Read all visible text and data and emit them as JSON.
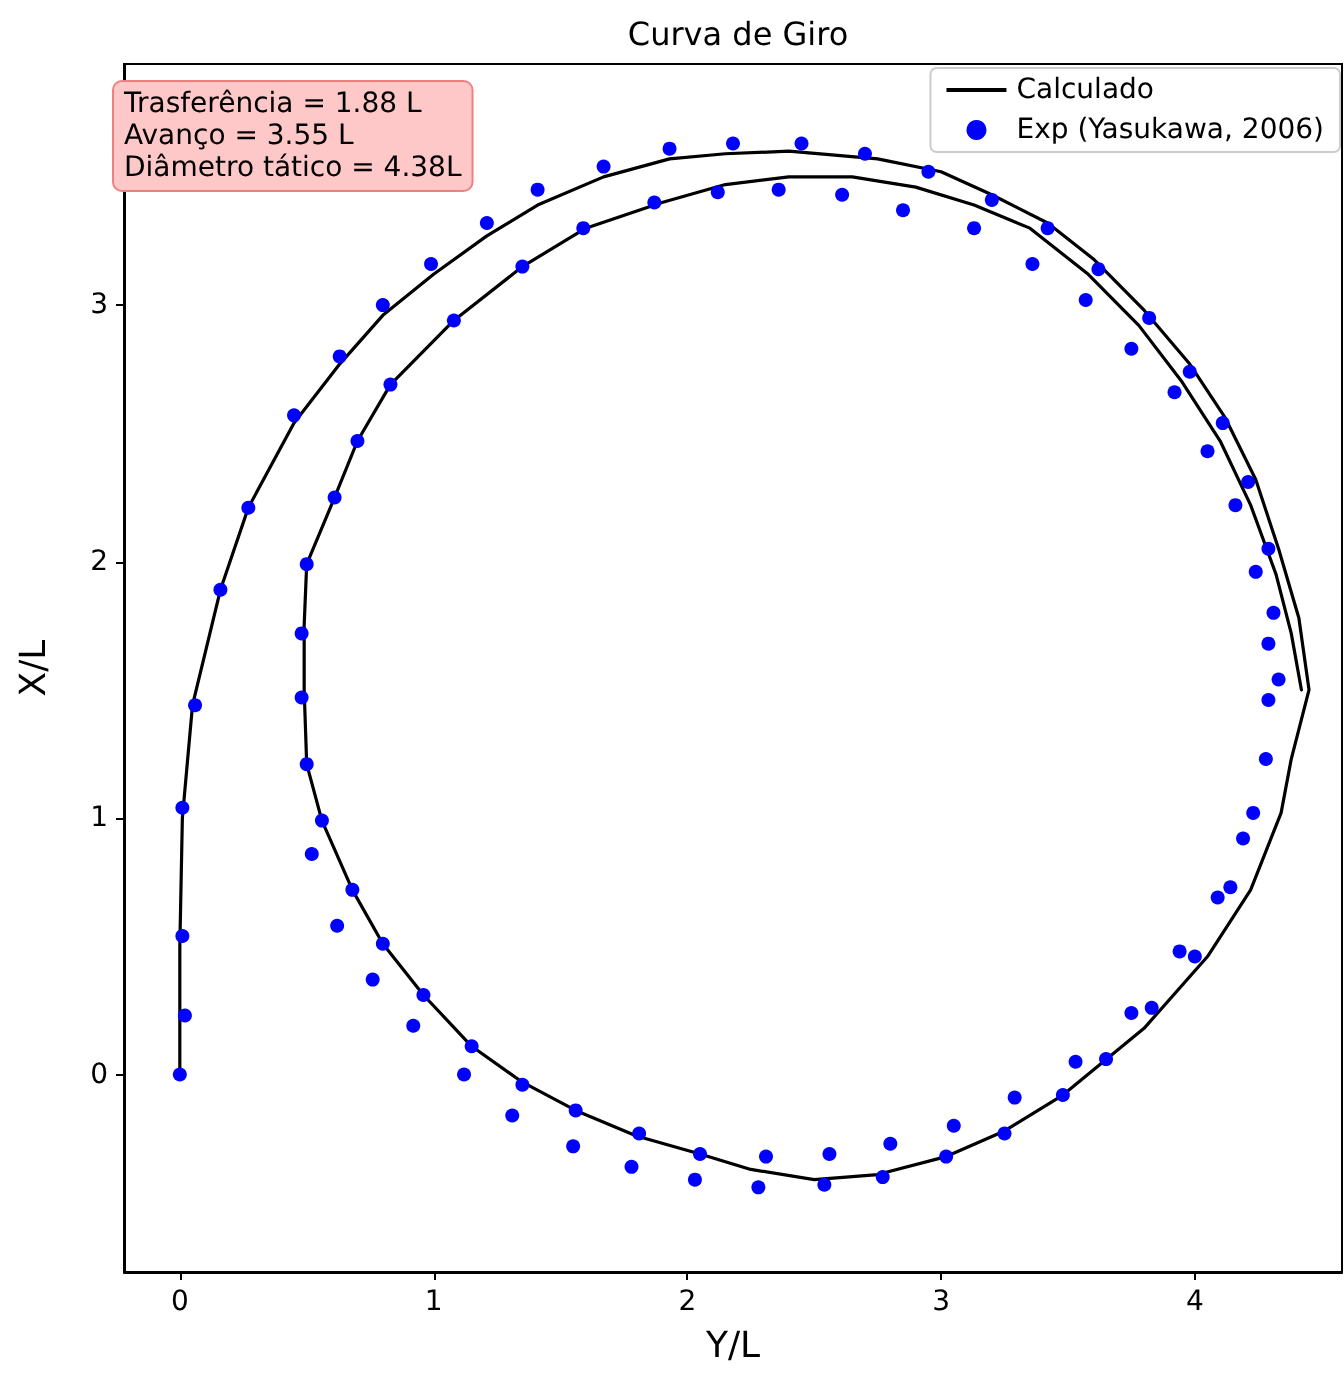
{
  "chart_data": {
    "type": "line",
    "title": "Curva de Giro",
    "xlabel": "Y/L",
    "ylabel": "X/L",
    "annotations": [
      "Trasferência = 1.88 L\nAvanço = 3.55 L\nDiâmetro tático = 4.38L"
    ],
    "xlim": [
      -0.22,
      4.58
    ],
    "ylim": [
      -0.77,
      3.94
    ],
    "xticks": [
      0,
      1,
      2,
      3,
      4
    ],
    "yticks": [
      0,
      1,
      2,
      3
    ],
    "legend": "top right",
    "series": [
      {
        "name": "Calculado",
        "color": "#000000",
        "marker": "none",
        "line_style": "solid",
        "x": [
          0,
          0,
          0.01,
          0.05,
          0.16,
          0.27,
          0.45,
          0.63,
          0.8,
          1.0,
          1.21,
          1.41,
          1.67,
          1.93,
          2.15,
          2.4,
          2.75,
          3.0,
          3.2,
          3.42,
          3.6,
          3.8,
          3.98,
          4.12,
          4.24,
          4.33,
          4.41,
          4.45,
          4.38,
          4.34,
          4.22,
          4.05,
          3.8,
          3.48,
          3.25,
          3.02,
          2.75,
          2.5,
          2.25,
          2.05,
          1.8,
          1.56,
          1.35,
          1.15,
          0.96,
          0.8,
          0.68,
          0.56,
          0.5,
          0.49,
          0.49,
          0.5,
          0.61,
          0.7,
          0.83,
          1.08,
          1.35,
          1.6,
          1.9,
          2.15,
          2.4,
          2.65,
          2.9,
          3.13,
          3.35,
          3.58,
          3.78,
          3.95,
          4.1,
          4.22,
          4.32,
          4.38,
          4.42
        ],
        "values": [
          0,
          0.5,
          1.0,
          1.44,
          1.89,
          2.21,
          2.54,
          2.77,
          2.96,
          3.12,
          3.27,
          3.39,
          3.5,
          3.57,
          3.59,
          3.6,
          3.57,
          3.52,
          3.43,
          3.32,
          3.18,
          2.98,
          2.77,
          2.56,
          2.32,
          2.05,
          1.78,
          1.5,
          1.23,
          1.02,
          0.72,
          0.46,
          0.18,
          -0.08,
          -0.22,
          -0.32,
          -0.39,
          -0.41,
          -0.37,
          -0.31,
          -0.24,
          -0.14,
          -0.03,
          0.11,
          0.31,
          0.51,
          0.72,
          0.99,
          1.21,
          1.5,
          1.75,
          1.99,
          2.25,
          2.47,
          2.69,
          2.94,
          3.15,
          3.3,
          3.4,
          3.47,
          3.5,
          3.5,
          3.46,
          3.39,
          3.3,
          3.12,
          2.92,
          2.7,
          2.47,
          2.22,
          1.95,
          1.72,
          1.5
        ]
      },
      {
        "name": "Exp (Yasukawa, 2006)",
        "type": "scatter",
        "color": "#0000ff",
        "marker": "circle",
        "x": [
          0,
          0.02,
          0.01,
          0.01,
          0.06,
          0.16,
          0.27,
          0.45,
          0.63,
          0.8,
          0.99,
          1.21,
          1.41,
          1.67,
          1.93,
          2.18,
          2.45,
          2.7,
          2.95,
          3.2,
          3.42,
          3.62,
          3.82,
          3.98,
          4.11,
          4.21,
          4.29,
          4.31,
          4.33,
          4.29,
          4.28,
          4.23,
          4.19,
          4.14,
          4.09,
          4.0,
          3.94,
          3.83,
          3.75,
          3.65,
          3.53,
          3.48,
          3.29,
          3.25,
          3.05,
          3.02,
          2.8,
          2.77,
          2.56,
          2.54,
          2.31,
          2.28,
          2.05,
          2.03,
          1.81,
          1.78,
          1.56,
          1.55,
          1.35,
          1.31,
          1.15,
          1.12,
          0.96,
          0.92,
          0.8,
          0.76,
          0.68,
          0.62,
          0.56,
          0.52,
          0.5,
          0.48,
          0.48,
          0.5,
          0.61,
          0.7,
          0.83,
          1.08,
          1.35,
          1.59,
          1.87,
          2.12,
          2.36,
          2.61,
          2.85,
          3.13,
          3.36,
          3.57,
          3.75,
          3.92,
          4.05,
          4.16,
          4.24,
          4.29
        ],
        "values": [
          0,
          0.23,
          0.54,
          1.04,
          1.44,
          1.89,
          2.21,
          2.57,
          2.8,
          3.0,
          3.16,
          3.32,
          3.45,
          3.54,
          3.61,
          3.63,
          3.63,
          3.59,
          3.52,
          3.41,
          3.3,
          3.14,
          2.95,
          2.74,
          2.54,
          2.31,
          2.05,
          1.8,
          1.54,
          1.46,
          1.23,
          1.02,
          0.92,
          0.73,
          0.69,
          0.46,
          0.48,
          0.26,
          0.24,
          0.06,
          0.05,
          -0.08,
          -0.09,
          -0.23,
          -0.2,
          -0.32,
          -0.27,
          -0.4,
          -0.31,
          -0.43,
          -0.32,
          -0.44,
          -0.31,
          -0.41,
          -0.23,
          -0.36,
          -0.14,
          -0.28,
          -0.04,
          -0.16,
          0.11,
          0.0,
          0.31,
          0.19,
          0.51,
          0.37,
          0.72,
          0.58,
          0.99,
          0.86,
          1.21,
          1.47,
          1.72,
          1.99,
          2.25,
          2.47,
          2.69,
          2.94,
          3.15,
          3.3,
          3.4,
          3.44,
          3.45,
          3.43,
          3.37,
          3.3,
          3.16,
          3.02,
          2.83,
          2.66,
          2.43,
          2.22,
          1.96,
          1.68
        ]
      }
    ]
  }
}
